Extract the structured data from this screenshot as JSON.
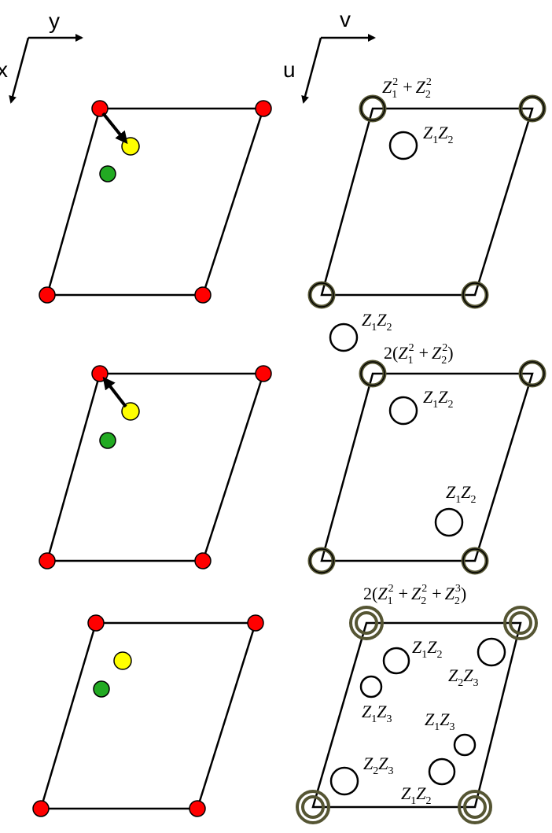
{
  "axes": {
    "real_space": {
      "x": "x",
      "y": "y"
    },
    "patterson_space": {
      "u": "u",
      "v": "v"
    }
  },
  "panels": [
    {
      "name": "row-1",
      "atoms": {
        "lattice_color": "#ff0000",
        "atom1_color": "#ffff00",
        "atom2_color": "#22aa22"
      },
      "labels": {
        "peak_origin": {
          "pre": "",
          "a": "Z",
          "as": "1",
          "asup": "2",
          "b": "Z",
          "bs": "2",
          "bsup": "2",
          "post": "",
          "op": "+"
        },
        "peak_z1z2": {
          "a": "Z",
          "as": "1",
          "b": "Z",
          "bs": "2"
        }
      }
    },
    {
      "name": "row-2",
      "atoms": {
        "lattice_color": "#ff0000",
        "atom1_color": "#ffff00",
        "atom2_color": "#22aa22"
      },
      "labels": {
        "peak_outside": {
          "a": "Z",
          "as": "1",
          "b": "Z",
          "bs": "2"
        },
        "peak_origin": {
          "pre": "2(",
          "a": "Z",
          "as": "1",
          "asup": "2",
          "b": "Z",
          "bs": "2",
          "bsup": "2",
          "post": ")",
          "op": "+"
        },
        "peak_z1z2_top": {
          "a": "Z",
          "as": "1",
          "b": "Z",
          "bs": "2"
        },
        "peak_z1z2_bottom": {
          "a": "Z",
          "as": "1",
          "b": "Z",
          "bs": "2"
        }
      }
    },
    {
      "name": "row-3",
      "atoms": {
        "lattice_color": "#ff0000",
        "atom1_color": "#ffff00",
        "atom2_color": "#22aa22"
      },
      "labels": {
        "peak_origin": {
          "pre": "2(",
          "a": "Z",
          "as": "1",
          "asup": "2",
          "b": "Z",
          "bs": "2",
          "bsup": "2",
          "c": "Z",
          "cs": "2",
          "csup": "3",
          "post": ")",
          "op": "+"
        },
        "peak_z1z2_top": {
          "a": "Z",
          "as": "1",
          "b": "Z",
          "bs": "2"
        },
        "peak_z2z3_right": {
          "a": "Z",
          "as": "2",
          "b": "Z",
          "bs": "3"
        },
        "peak_z1z3_left": {
          "a": "Z",
          "as": "1",
          "b": "Z",
          "bs": "3"
        },
        "peak_z1z3_right": {
          "a": "Z",
          "as": "1",
          "b": "Z",
          "bs": "3"
        },
        "peak_z2z3_left": {
          "a": "Z",
          "as": "2",
          "b": "Z",
          "bs": "3"
        },
        "peak_z1z2_bottom": {
          "a": "Z",
          "as": "1",
          "b": "Z",
          "bs": "2"
        }
      }
    }
  ]
}
